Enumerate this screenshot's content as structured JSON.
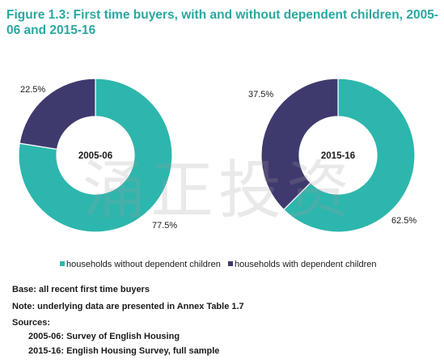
{
  "title": "Figure 1.3: First time buyers, with and without dependent children, 2005-06 and 2015-16",
  "colors": {
    "without_children": "#2db6ad",
    "with_children": "#3f3a6e",
    "title": "#2aa7a1"
  },
  "chart_data": [
    {
      "type": "pie",
      "style": "donut",
      "center_label": "2005-06",
      "slices": [
        {
          "label": "households without dependent children",
          "value": 77.5,
          "display": "77.5%"
        },
        {
          "label": "households with dependent children",
          "value": 22.5,
          "display": "22.5%"
        }
      ]
    },
    {
      "type": "pie",
      "style": "donut",
      "center_label": "2015-16",
      "slices": [
        {
          "label": "households without dependent children",
          "value": 62.5,
          "display": "62.5%"
        },
        {
          "label": "households with dependent children",
          "value": 37.5,
          "display": "37.5%"
        }
      ]
    }
  ],
  "legend": [
    {
      "label": "households without dependent children",
      "color": "#2db6ad"
    },
    {
      "label": "households with dependent children",
      "color": "#3f3a6e"
    }
  ],
  "notes": {
    "base": "Base: all recent first time buyers",
    "note": "Note: underlying data are presented in Annex Table 1.7",
    "sources_heading": "Sources:",
    "source_1": "2005-06: Survey of English Housing",
    "source_2": "2015-16: English Housing Survey, full sample"
  },
  "watermark": "涌正投资"
}
